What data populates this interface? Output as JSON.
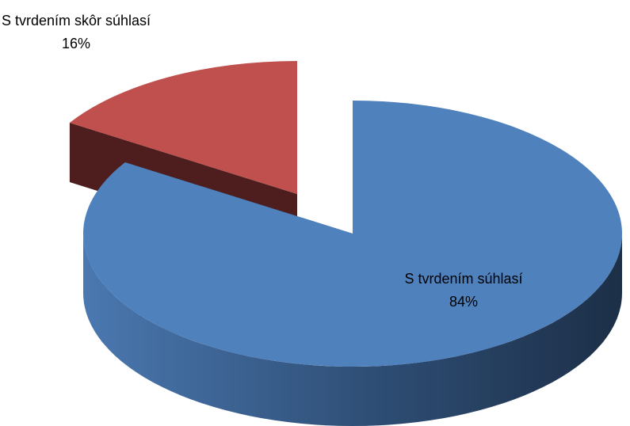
{
  "chart_data": {
    "type": "pie",
    "categories": [
      "S tvrdením súhlasí",
      "S tvrdením skôr súhlasí"
    ],
    "values": [
      84,
      16
    ],
    "value_labels": [
      "84%",
      "16%"
    ],
    "colors": [
      "#4f81bd",
      "#c0504d"
    ]
  }
}
